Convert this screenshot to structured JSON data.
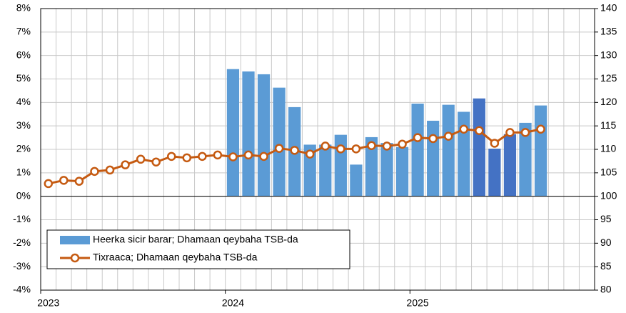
{
  "chart_data": {
    "type": "bar_line",
    "categories": [
      "2023",
      null,
      null,
      null,
      null,
      null,
      null,
      null,
      null,
      null,
      null,
      null,
      "2024",
      null,
      null,
      null,
      null,
      null,
      null,
      null,
      null,
      null,
      null,
      null,
      "2025",
      null,
      null,
      null,
      null,
      null,
      null,
      null,
      null,
      null,
      null,
      null
    ],
    "series": [
      {
        "name": "Heerka sicir barar; Dhamaan qeybaha TSB-da",
        "type": "bar",
        "color": "#5b9bd5",
        "colors": [
          null,
          null,
          null,
          null,
          null,
          null,
          null,
          null,
          null,
          null,
          null,
          null,
          "#5b9bd5",
          "#5b9bd5",
          "#5b9bd5",
          "#5b9bd5",
          "#5b9bd5",
          "#5b9bd5",
          "#5b9bd5",
          "#5b9bd5",
          "#5b9bd5",
          "#5b9bd5",
          "#5b9bd5",
          "#5b9bd5",
          "#5b9bd5",
          "#5b9bd5",
          "#5b9bd5",
          "#5b9bd5",
          "#4472c4",
          "#4472c4",
          "#4472c4",
          "#5b9bd5",
          "#5b9bd5",
          null,
          null,
          null
        ],
        "values": [
          null,
          null,
          null,
          null,
          null,
          null,
          null,
          null,
          null,
          null,
          null,
          null,
          5.42,
          5.32,
          5.2,
          4.63,
          3.8,
          2.2,
          2.2,
          2.62,
          1.35,
          2.52,
          2.27,
          2.1,
          3.95,
          3.22,
          3.9,
          3.6,
          4.17,
          2.03,
          2.65,
          3.13,
          3.87,
          null,
          null,
          null
        ]
      },
      {
        "name": "Tixraaca; Dhamaan qeybaha TSB-da",
        "type": "line",
        "axis": "y2",
        "color": "#c55a11",
        "values": [
          102.7,
          103.4,
          103.2,
          105.3,
          105.6,
          106.7,
          107.9,
          107.3,
          108.5,
          108.2,
          108.5,
          108.8,
          108.4,
          108.8,
          108.5,
          110.2,
          109.8,
          109.0,
          110.7,
          110.1,
          110.1,
          110.8,
          110.7,
          111.1,
          112.5,
          112.3,
          112.8,
          114.3,
          114.0,
          111.3,
          113.6,
          113.6,
          114.3,
          null,
          null,
          null
        ]
      }
    ],
    "ylim": [
      -4,
      8
    ],
    "yticks": [
      {
        "value": -4,
        "label": "-4%"
      },
      {
        "value": -3,
        "label": "-3%"
      },
      {
        "value": -2,
        "label": "-2%"
      },
      {
        "value": -1,
        "label": "-1%"
      },
      {
        "value": 0,
        "label": "0%"
      },
      {
        "value": 1,
        "label": "1%"
      },
      {
        "value": 2,
        "label": "2%"
      },
      {
        "value": 3,
        "label": "3%"
      },
      {
        "value": 4,
        "label": "4%"
      },
      {
        "value": 5,
        "label": "5%"
      },
      {
        "value": 6,
        "label": "6%"
      },
      {
        "value": 7,
        "label": "7%"
      },
      {
        "value": 8,
        "label": "8%"
      }
    ],
    "y2lim": [
      80,
      140
    ],
    "y2ticks": [
      80,
      85,
      90,
      95,
      100,
      105,
      110,
      115,
      120,
      125,
      130,
      135,
      140
    ],
    "grid": true,
    "legend": "lower left"
  }
}
